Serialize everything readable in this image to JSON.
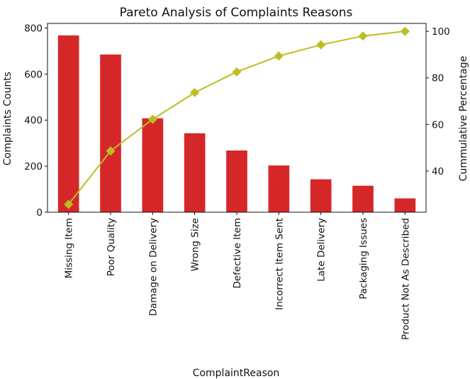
{
  "chart_data": {
    "type": "bar",
    "title": "Pareto Analysis of Complaints Reasons",
    "xlabel": "ComplaintReason",
    "ylabel": "Complaints Counts",
    "y2label": "Cummulative Percentage",
    "categories": [
      "Missing Item",
      "Poor Quality",
      "Damage on Delivery",
      "Wrong Size",
      "Defective Item",
      "Incorrect Item Sent",
      "Late Delivery",
      "Packaging Issues",
      "Product Not As Described"
    ],
    "series": [
      {
        "type": "bar",
        "axis": "left",
        "color": "#d62728",
        "values": [
          768,
          685,
          408,
          343,
          268,
          203,
          143,
          115,
          60
        ]
      },
      {
        "type": "line",
        "axis": "right",
        "marker": "diamond",
        "color": "#bcbd22",
        "values": [
          25.7,
          48.6,
          62.2,
          73.7,
          82.6,
          89.4,
          94.2,
          98.0,
          100.0
        ]
      }
    ],
    "ylim": [
      0,
      820
    ],
    "y2lim": [
      22.3,
      103.4
    ],
    "yticks": [
      0,
      200,
      400,
      600,
      800
    ],
    "y2ticks": [
      40,
      60,
      80,
      100
    ],
    "grid": false,
    "legend": "none"
  }
}
